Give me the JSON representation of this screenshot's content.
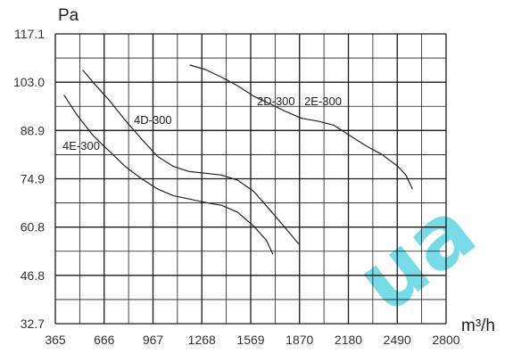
{
  "chart_data": {
    "type": "line",
    "title": "",
    "xlabel": "m³/h",
    "ylabel": "Pa",
    "x_ticks": [
      "365",
      "666",
      "967",
      "1268",
      "1569",
      "1870",
      "2180",
      "2490",
      "2800"
    ],
    "y_ticks": [
      "117.1",
      "103.0",
      "88.9",
      "74.9",
      "60.8",
      "46.8",
      "32.7"
    ],
    "xlim": [
      365,
      2800
    ],
    "ylim": [
      32.7,
      117.1
    ],
    "grid": true,
    "legend": "none",
    "series": [
      {
        "name": "4E-300",
        "x": [
          420,
          500,
          600,
          700,
          800,
          900,
          1000,
          1100,
          1200,
          1300,
          1400,
          1500,
          1600,
          1680,
          1720
        ],
        "y": [
          99.2,
          93.5,
          87.5,
          83,
          78.5,
          75,
          72,
          70,
          69,
          68,
          67.2,
          65.2,
          61.2,
          57,
          53
        ]
      },
      {
        "name": "4D-300",
        "x": [
          537,
          600,
          700,
          800,
          900,
          1000,
          1100,
          1200,
          1300,
          1400,
          1500,
          1600,
          1700,
          1800,
          1880
        ],
        "y": [
          106.5,
          103,
          97.8,
          92,
          86.6,
          81.5,
          78.5,
          77,
          76.5,
          76,
          74.5,
          71.3,
          66,
          60.5,
          56
        ]
      },
      {
        "name": "2D-300 2E-300",
        "x": [
          1205,
          1300,
          1400,
          1500,
          1600,
          1700,
          1800,
          1900,
          2000,
          2100,
          2200,
          2300,
          2400,
          2500,
          2550,
          2590
        ],
        "y": [
          108,
          106.7,
          104.5,
          102,
          99,
          96.8,
          94.5,
          92.5,
          91.7,
          90.5,
          87.5,
          84.5,
          82,
          78.5,
          76,
          72
        ]
      }
    ],
    "series_labels": [
      "4E-300",
      "4D-300",
      "2D-300",
      "2E-300"
    ]
  },
  "watermark": {
    "text": "ua",
    "color": "#5fd3e3"
  }
}
